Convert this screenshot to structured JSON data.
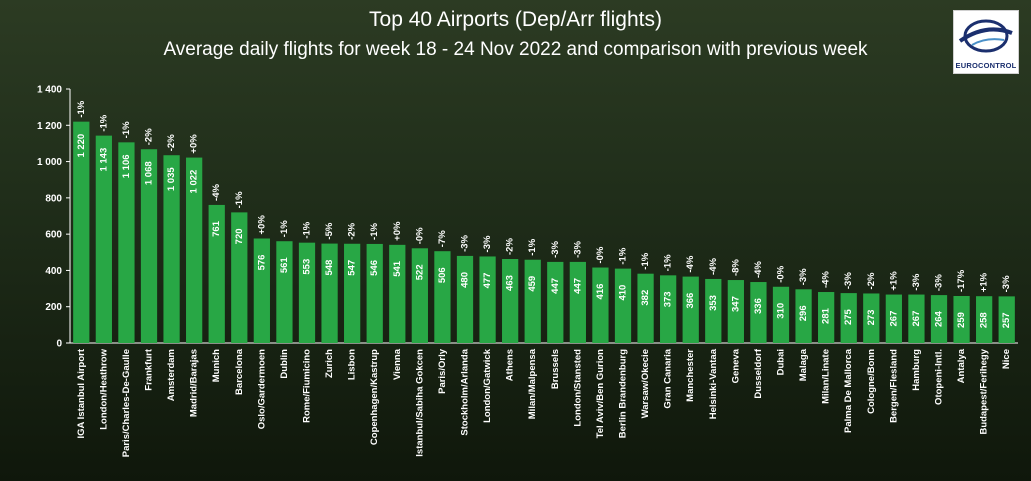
{
  "brand": {
    "logo_text": "EUROCONTROL",
    "bar_color": "#28a745",
    "axis_color": "#ffffff"
  },
  "chart_data": {
    "type": "bar",
    "title": "Top 40 Airports (Dep/Arr flights)",
    "subtitle": "Average daily flights for week 18 - 24 Nov 2022 and comparison with previous week",
    "ylim": [
      0,
      1400
    ],
    "yticks": [
      0,
      200,
      400,
      600,
      800,
      1000,
      1200,
      1400
    ],
    "ytick_labels": [
      "0",
      "200",
      "400",
      "600",
      "800",
      "1 000",
      "1 200",
      "1 400"
    ],
    "categories": [
      "IGA Istanbul Airport",
      "London/Heathrow",
      "Paris/Charles-De-Gaulle",
      "Frankfurt",
      "Amsterdam",
      "Madrid/Barajas",
      "Munich",
      "Barcelona",
      "Oslo/Gardermoen",
      "Dublin",
      "Rome/Fiumicino",
      "Zurich",
      "Lisbon",
      "Copenhagen/Kastrup",
      "Vienna",
      "Istanbul/Sabiha Gokcen",
      "Paris/Orly",
      "Stockholm/Arlanda",
      "London/Gatwick",
      "Athens",
      "Milan/Malpensa",
      "Brussels",
      "London/Stansted",
      "Tel Aviv/Ben Gurion",
      "Berlin Brandenburg",
      "Warsaw/Okecie",
      "Gran Canaria",
      "Manchester",
      "Helsinki-Vantaa",
      "Geneva",
      "Dusseldorf",
      "Dubai",
      "Malaga",
      "Milan/Linate",
      "Palma De Mallorca",
      "Cologne/Bonn",
      "Bergen/Flesland",
      "Hamburg",
      "Otopeni-Intl.",
      "Antalya",
      "Budapest/Ferihegy",
      "Nice"
    ],
    "values": [
      1220,
      1143,
      1106,
      1068,
      1035,
      1022,
      761,
      720,
      576,
      561,
      553,
      548,
      547,
      546,
      541,
      522,
      506,
      480,
      477,
      463,
      459,
      447,
      447,
      416,
      410,
      382,
      373,
      366,
      353,
      347,
      336,
      310,
      296,
      281,
      275,
      273,
      267,
      267,
      264,
      259,
      258,
      257
    ],
    "value_labels": [
      "1 220",
      "1 143",
      "1 106",
      "1 068",
      "1 035",
      "1 022",
      "761",
      "720",
      "576",
      "561",
      "553",
      "548",
      "547",
      "546",
      "541",
      "522",
      "506",
      "480",
      "477",
      "463",
      "459",
      "447",
      "447",
      "416",
      "410",
      "382",
      "373",
      "366",
      "353",
      "347",
      "336",
      "310",
      "296",
      "281",
      "275",
      "273",
      "267",
      "267",
      "264",
      "259",
      "258",
      "257"
    ],
    "changes": [
      "-1%",
      "-1%",
      "-1%",
      "-2%",
      "-2%",
      "+0%",
      "-4%",
      "-1%",
      "+0%",
      "-1%",
      "-1%",
      "-5%",
      "-2%",
      "-1%",
      "+0%",
      "-0%",
      "-7%",
      "-3%",
      "-3%",
      "-2%",
      "-1%",
      "-3%",
      "-3%",
      "-0%",
      "-1%",
      "-1%",
      "-1%",
      "-4%",
      "-4%",
      "-8%",
      "-4%",
      "-0%",
      "-3%",
      "-4%",
      "-3%",
      "-2%",
      "+1%",
      "-3%",
      "-3%",
      "-17%",
      "+1%",
      "-3%"
    ]
  }
}
